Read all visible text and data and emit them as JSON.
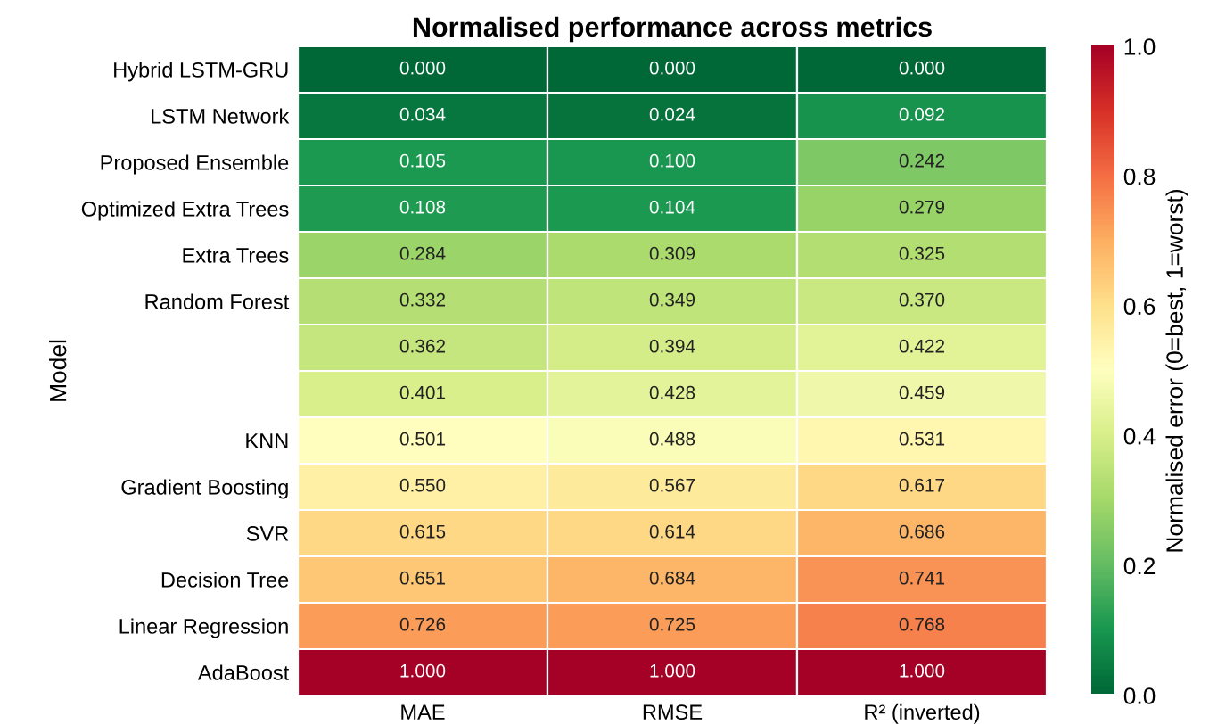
{
  "chart_data": {
    "type": "heatmap",
    "title": "Normalised performance across metrics",
    "ylabel": "Model",
    "clabel": "Normalised error (0=best, 1=worst)",
    "categories": [
      "MAE",
      "RMSE",
      "R² (inverted)"
    ],
    "y_categories": [
      "Hybrid LSTM-GRU",
      "LSTM Network",
      "Proposed Ensemble",
      "Optimized Extra Trees",
      "Extra Trees",
      "Random Forest",
      null,
      null,
      "KNN",
      "Gradient Boosting",
      "SVR",
      "Decision Tree",
      "Linear Regression",
      "AdaBoost"
    ],
    "cells": [
      [
        0.0,
        0.0,
        0.0
      ],
      [
        0.034,
        0.024,
        0.092
      ],
      [
        0.105,
        0.1,
        0.242
      ],
      [
        0.108,
        0.104,
        0.279
      ],
      [
        0.284,
        0.309,
        0.325
      ],
      [
        0.332,
        0.349,
        0.37
      ],
      [
        0.362,
        0.394,
        0.422
      ],
      [
        0.401,
        0.428,
        0.459
      ],
      [
        0.501,
        0.488,
        0.531
      ],
      [
        0.55,
        0.567,
        0.617
      ],
      [
        0.615,
        0.614,
        0.686
      ],
      [
        0.651,
        0.684,
        0.741
      ],
      [
        0.726,
        0.725,
        0.768
      ],
      [
        1.0,
        1.0,
        1.0
      ]
    ],
    "cell_labels": [
      [
        "0.000",
        "0.000",
        "0.000"
      ],
      [
        "0.034",
        "0.024",
        "0.092"
      ],
      [
        "0.105",
        "0.100",
        "0.242"
      ],
      [
        "0.108",
        "0.104",
        "0.279"
      ],
      [
        "0.284",
        "0.309",
        "0.325"
      ],
      [
        "0.332",
        "0.349",
        "0.370"
      ],
      [
        "0.362",
        "0.394",
        "0.422"
      ],
      [
        "0.401",
        "0.428",
        "0.459"
      ],
      [
        "0.501",
        "0.488",
        "0.531"
      ],
      [
        "0.550",
        "0.567",
        "0.617"
      ],
      [
        "0.615",
        "0.614",
        "0.686"
      ],
      [
        "0.651",
        "0.684",
        "0.741"
      ],
      [
        "0.726",
        "0.725",
        "0.768"
      ],
      [
        "1.000",
        "1.000",
        "1.000"
      ]
    ],
    "clim": [
      0,
      1
    ],
    "cticks": [
      {
        "value": 0,
        "label": "0.0"
      },
      0.2,
      0.4,
      0.6,
      0.8,
      {
        "value": 1,
        "label": "1.0"
      }
    ]
  }
}
